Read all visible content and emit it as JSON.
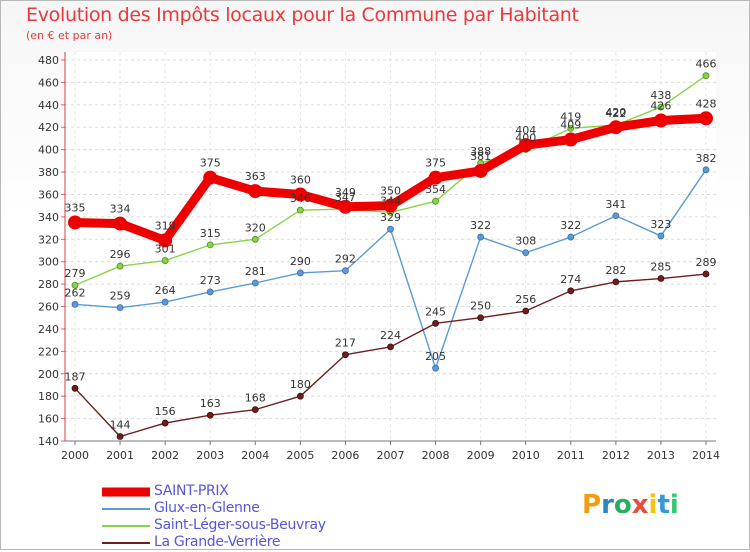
{
  "chart_data": {
    "type": "line",
    "title": "Evolution des Impôts locaux pour la Commune par Habitant",
    "subtitle": "(en € et par an)",
    "xlabel": "",
    "ylabel": "",
    "x": [
      "2000",
      "2001",
      "2002",
      "2003",
      "2004",
      "2005",
      "2006",
      "2007",
      "2008",
      "2009",
      "2010",
      "2011",
      "2012",
      "2013",
      "2014"
    ],
    "ylim": [
      140,
      480
    ],
    "yticks": [
      140,
      160,
      180,
      200,
      220,
      240,
      260,
      280,
      300,
      320,
      340,
      360,
      380,
      400,
      420,
      440,
      460,
      480
    ],
    "grid": true,
    "legend_position": "bottom-left",
    "series": [
      {
        "name": "SAINT-PRIX",
        "color": "#ee0000",
        "values": [
          335,
          334,
          319,
          375,
          363,
          360,
          349,
          350,
          375,
          381,
          404,
          409,
          420,
          426,
          428
        ]
      },
      {
        "name": "Glux-en-Glenne",
        "color": "#5b9bd5",
        "values": [
          262,
          259,
          264,
          273,
          281,
          290,
          292,
          329,
          205,
          322,
          308,
          322,
          341,
          323,
          382
        ]
      },
      {
        "name": "Saint-Léger-sous-Beuvray",
        "color": "#88d448",
        "values": [
          279,
          296,
          301,
          315,
          320,
          346,
          347,
          344,
          354,
          388,
          400,
          419,
          422,
          438,
          466
        ]
      },
      {
        "name": "La Grande-Verrière",
        "color": "#6e1e1e",
        "values": [
          187,
          144,
          156,
          163,
          168,
          180,
          217,
          224,
          245,
          250,
          256,
          274,
          282,
          285,
          289
        ]
      }
    ]
  },
  "logo": {
    "letters": [
      "P",
      "r",
      "o",
      "x",
      "i",
      "t",
      "i"
    ],
    "colors": [
      "#f39c12",
      "#2e86c1",
      "#27ae60",
      "#e74c3c",
      "#f1c40f",
      "#3498db",
      "#2ecc71"
    ]
  }
}
